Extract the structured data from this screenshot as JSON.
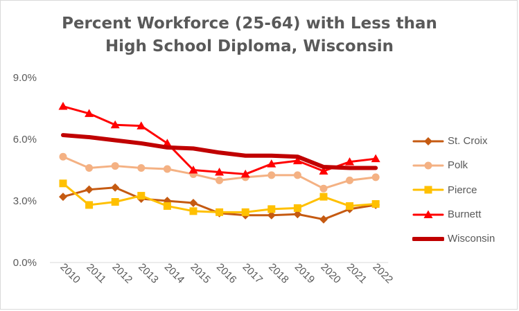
{
  "chart_data": {
    "type": "line",
    "title": [
      "Percent Workforce (25-64) with Less than",
      "High School Diploma, Wisconsin"
    ],
    "xlabel": "",
    "ylabel": "",
    "categories": [
      "2010",
      "2011",
      "2012",
      "2013",
      "2014",
      "2015",
      "2016",
      "2017",
      "2018",
      "2019",
      "2020",
      "2021",
      "2022"
    ],
    "ylim": [
      0,
      9
    ],
    "yticks": [
      0,
      3,
      6,
      9
    ],
    "ytick_labels": [
      "0.0%",
      "3.0%",
      "6.0%",
      "9.0%"
    ],
    "grid": false,
    "legend_position": "right",
    "series": [
      {
        "name": "St. Croix",
        "color": "#C55A11",
        "marker": "diamond",
        "width": 3,
        "values": [
          3.2,
          3.55,
          3.65,
          3.1,
          3.0,
          2.9,
          2.4,
          2.3,
          2.3,
          2.35,
          2.1,
          2.6,
          2.8
        ]
      },
      {
        "name": "Polk",
        "color": "#F4B183",
        "marker": "circle",
        "width": 3,
        "values": [
          5.15,
          4.6,
          4.7,
          4.6,
          4.55,
          4.3,
          4.0,
          4.15,
          4.25,
          4.25,
          3.6,
          4.0,
          4.15
        ]
      },
      {
        "name": "Pierce",
        "color": "#FFC000",
        "marker": "square",
        "width": 3,
        "values": [
          3.85,
          2.8,
          2.95,
          3.25,
          2.75,
          2.5,
          2.45,
          2.45,
          2.6,
          2.65,
          3.2,
          2.75,
          2.85
        ]
      },
      {
        "name": "Burnett",
        "color": "#FF0000",
        "marker": "triangle",
        "width": 3,
        "values": [
          7.6,
          7.25,
          6.7,
          6.65,
          5.8,
          4.5,
          4.4,
          4.3,
          4.8,
          4.95,
          4.45,
          4.9,
          5.05
        ]
      },
      {
        "name": "Wisconsin",
        "color": "#C00000",
        "marker": "none",
        "width": 6,
        "values": [
          6.2,
          6.1,
          5.95,
          5.8,
          5.6,
          5.55,
          5.35,
          5.2,
          5.2,
          5.15,
          4.65,
          4.6,
          4.6
        ]
      }
    ]
  }
}
